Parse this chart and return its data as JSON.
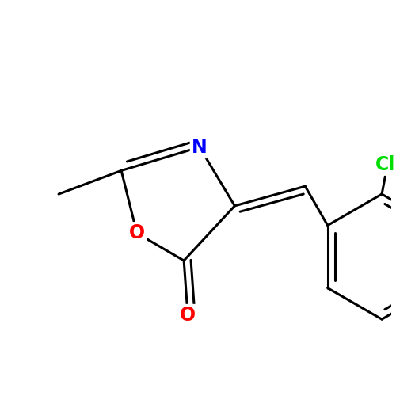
{
  "background_color": "#ffffff",
  "bond_color": "#000000",
  "bond_width": 2.2,
  "figsize": [
    5.0,
    5.0
  ],
  "dpi": 100,
  "N_label": {
    "text": "N",
    "color": "#0000ff",
    "fontsize": 17,
    "fontweight": "bold"
  },
  "O_ring_label": {
    "text": "O",
    "color": "#ff0000",
    "fontsize": 17,
    "fontweight": "bold"
  },
  "O_carbonyl_label": {
    "text": "O",
    "color": "#ff0000",
    "fontsize": 17,
    "fontweight": "bold"
  },
  "Cl_label": {
    "text": "Cl",
    "color": "#00dd00",
    "fontsize": 17,
    "fontweight": "bold"
  }
}
